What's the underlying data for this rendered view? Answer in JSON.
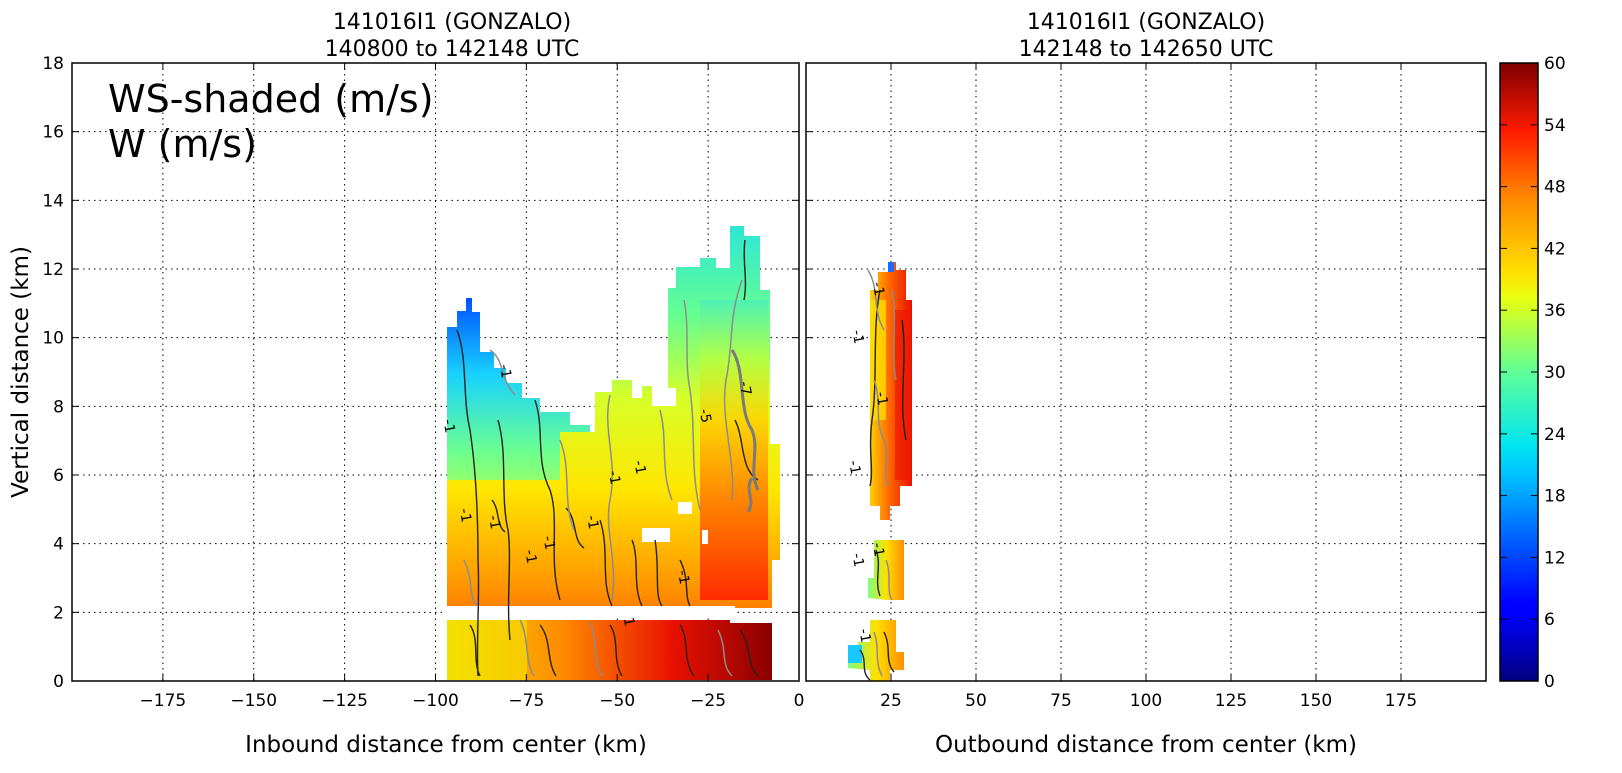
{
  "chart_data": [
    {
      "type": "heatmap",
      "title_line1": "141016I1 (GONZALO)",
      "title_line2": "140800 to 142148 UTC",
      "xlabel": "Inbound distance from center (km)",
      "ylabel": "Vertical distance (km)",
      "xlim": [
        -200,
        0
      ],
      "ylim": [
        0,
        18
      ],
      "xticks": [
        -175,
        -150,
        -125,
        -100,
        -75,
        -50,
        -25,
        0
      ],
      "xtick_labels": [
        "−175",
        "−150",
        "−125",
        "−100",
        "−75",
        "−50",
        "−25",
        "0"
      ],
      "yticks": [
        0,
        2,
        4,
        6,
        8,
        10,
        12,
        14,
        16,
        18
      ],
      "ytick_labels": [
        "0",
        "2",
        "4",
        "6",
        "8",
        "10",
        "12",
        "14",
        "16",
        "18"
      ],
      "annotations": [
        "WS-shaded (m/s)",
        "W (m/s)"
      ],
      "contour_labels": [
        "-1",
        "-1",
        "-1",
        "-1",
        "-1",
        "-1",
        "-1",
        "-1",
        "-1",
        "-1",
        "1",
        "-5",
        "-7"
      ]
    },
    {
      "type": "heatmap",
      "title_line1": "141016I1 (GONZALO)",
      "title_line2": "142148 to 142650 UTC",
      "xlabel": "Outbound distance from center (km)",
      "xlim": [
        0,
        200
      ],
      "ylim": [
        0,
        18
      ],
      "xticks": [
        25,
        50,
        75,
        100,
        125,
        150,
        175
      ],
      "xtick_labels": [
        "25",
        "50",
        "75",
        "100",
        "125",
        "150",
        "175"
      ],
      "contour_labels": [
        "-1",
        "-1",
        "-1",
        "-1",
        "-1",
        "-1",
        "-1"
      ]
    }
  ],
  "colorbar": {
    "range": [
      0,
      60
    ],
    "ticks": [
      0,
      6,
      12,
      18,
      24,
      30,
      36,
      42,
      48,
      54,
      60
    ],
    "tick_labels": [
      "0",
      "6",
      "12",
      "18",
      "24",
      "30",
      "36",
      "42",
      "48",
      "54",
      "60"
    ],
    "colormap": "jet",
    "colors": [
      "#00007f",
      "#0000ff",
      "#007fff",
      "#00ffff",
      "#7fff7f",
      "#ffff00",
      "#ff7f00",
      "#ff0000",
      "#7f0000"
    ]
  }
}
